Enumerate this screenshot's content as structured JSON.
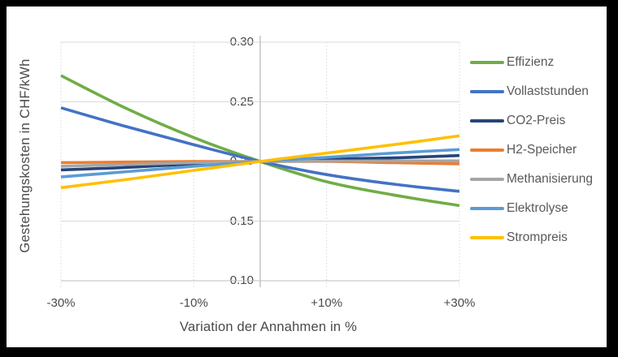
{
  "frame": {
    "background": "#000000",
    "canvas_background": "#FFFFFF"
  },
  "colors": {
    "gridline": "#D9D9D9",
    "axis_line": "#BFBFBF",
    "tick_text": "#4A4A4A",
    "legend_text": "#595959"
  },
  "chart_data": {
    "type": "line",
    "xlabel": "Variation der Annahmen in %",
    "ylabel": "Gestehungskosten in CHF/kWh",
    "xlim": [
      -30,
      30
    ],
    "ylim": [
      0.1,
      0.3
    ],
    "grid": {
      "horizontal": "solid",
      "vertical": "dotted"
    },
    "legend_position": "right",
    "x": [
      -30,
      -20,
      -10,
      0,
      10,
      20,
      30
    ],
    "xticks": [
      {
        "value": -30,
        "label": "-30%"
      },
      {
        "value": -10,
        "label": "-10%"
      },
      {
        "value": 10,
        "label": "+10%"
      },
      {
        "value": 30,
        "label": "+30%"
      }
    ],
    "yticks": [
      {
        "value": 0.3,
        "label": "0.30"
      },
      {
        "value": 0.25,
        "label": "0.25"
      },
      {
        "value": 0.2,
        "label": "0.20"
      },
      {
        "value": 0.15,
        "label": "0.15"
      },
      {
        "value": 0.1,
        "label": "0.10"
      }
    ],
    "series": [
      {
        "name": "Effizienz",
        "color": "#70AD47",
        "values": [
          0.272,
          0.244,
          0.22,
          0.2,
          0.183,
          0.172,
          0.163
        ]
      },
      {
        "name": "Vollaststunden",
        "color": "#4472C4",
        "values": [
          0.245,
          0.229,
          0.214,
          0.2,
          0.189,
          0.181,
          0.175
        ]
      },
      {
        "name": "CO2-Preis",
        "color": "#264478",
        "values": [
          0.193,
          0.195,
          0.198,
          0.2,
          0.202,
          0.203,
          0.205
        ]
      },
      {
        "name": "H2-Speicher",
        "color": "#ED7D31",
        "values": [
          0.199,
          0.1995,
          0.2,
          0.2,
          0.2,
          0.199,
          0.198
        ]
      },
      {
        "name": "Methanisierung",
        "color": "#A5A5A5",
        "values": [
          0.196,
          0.1975,
          0.199,
          0.2,
          0.2003,
          0.2005,
          0.2005
        ]
      },
      {
        "name": "Elektrolyse",
        "color": "#5B9BD5",
        "values": [
          0.187,
          0.1915,
          0.196,
          0.2,
          0.2035,
          0.207,
          0.21
        ]
      },
      {
        "name": "Strompreis",
        "color": "#FFC000",
        "values": [
          0.178,
          0.185,
          0.1925,
          0.2,
          0.207,
          0.214,
          0.2215
        ]
      }
    ]
  }
}
